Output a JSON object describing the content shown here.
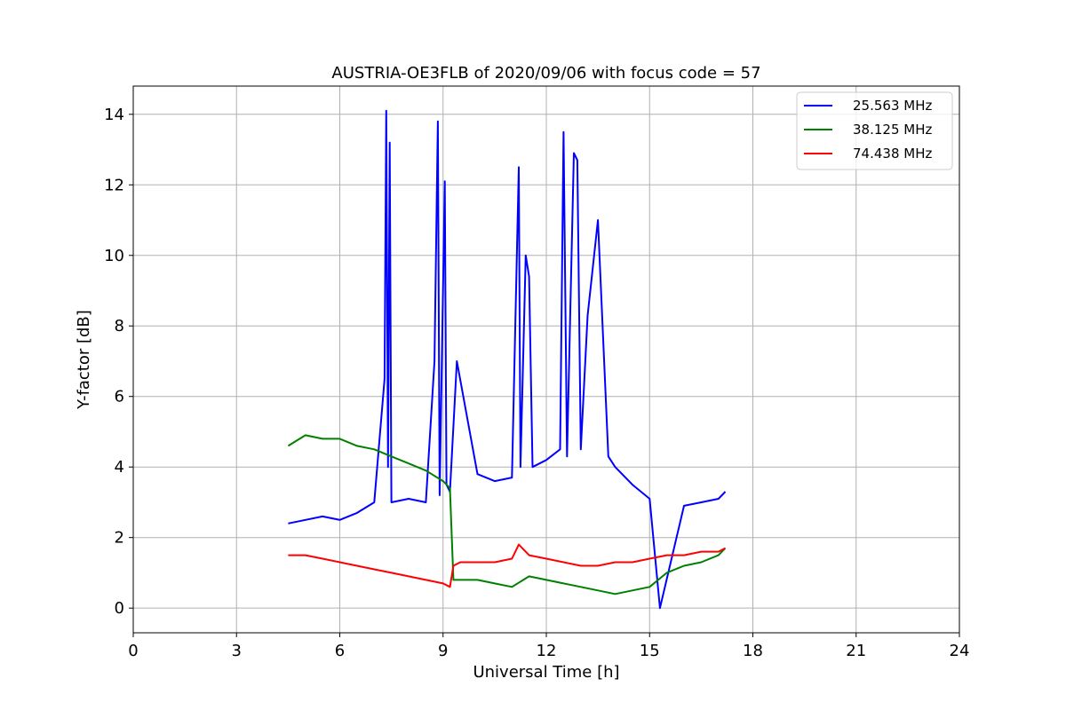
{
  "chart_data": {
    "type": "line",
    "title": "AUSTRIA-OE3FLB of 2020/09/06 with focus code = 57",
    "xlabel": "Universal Time [h]",
    "ylabel": "Y-factor [dB]",
    "xlim": [
      0,
      24
    ],
    "ylim": [
      -0.7,
      14.8
    ],
    "xticks": [
      0,
      3,
      6,
      9,
      12,
      15,
      18,
      21,
      24
    ],
    "xtick_labels": [
      "0",
      "3",
      "6",
      "9",
      "12",
      "15",
      "18",
      "21",
      "24"
    ],
    "yticks": [
      0,
      2,
      4,
      6,
      8,
      10,
      12,
      14
    ],
    "ytick_labels": [
      "0",
      "2",
      "4",
      "6",
      "8",
      "10",
      "12",
      "14"
    ],
    "grid": true,
    "legend_position": "top-right",
    "series": [
      {
        "name": "25.563 MHz",
        "color": "#0000ff",
        "x": [
          4.5,
          5.0,
          5.5,
          6.0,
          6.5,
          7.0,
          7.3,
          7.35,
          7.4,
          7.45,
          7.5,
          8.0,
          8.5,
          8.75,
          8.85,
          8.9,
          9.05,
          9.1,
          9.2,
          9.4,
          10.0,
          10.5,
          11.0,
          11.2,
          11.25,
          11.4,
          11.5,
          11.6,
          12.0,
          12.4,
          12.5,
          12.6,
          12.8,
          12.9,
          13.0,
          13.2,
          13.5,
          13.8,
          14.0,
          14.5,
          15.0,
          15.3,
          16.0,
          16.5,
          17.0,
          17.2
        ],
        "y": [
          2.4,
          2.5,
          2.6,
          2.5,
          2.7,
          3.0,
          6.5,
          14.1,
          4.0,
          13.2,
          3.0,
          3.1,
          3.0,
          7.0,
          13.8,
          3.2,
          12.1,
          3.5,
          3.3,
          7.0,
          3.8,
          3.6,
          3.7,
          12.5,
          4.0,
          10.0,
          9.4,
          4.0,
          4.2,
          4.5,
          13.5,
          4.3,
          12.9,
          12.7,
          4.5,
          8.3,
          11.0,
          4.3,
          4.0,
          3.5,
          3.1,
          0.0,
          2.9,
          3.0,
          3.1,
          3.3
        ]
      },
      {
        "name": "38.125 MHz",
        "color": "#008000",
        "x": [
          4.5,
          5.0,
          5.5,
          6.0,
          6.5,
          7.0,
          7.5,
          8.0,
          8.5,
          9.0,
          9.2,
          9.3,
          9.5,
          10.0,
          10.5,
          11.0,
          11.5,
          12.0,
          12.5,
          13.0,
          13.5,
          14.0,
          14.5,
          15.0,
          15.5,
          16.0,
          16.5,
          17.0,
          17.2
        ],
        "y": [
          4.6,
          4.9,
          4.8,
          4.8,
          4.6,
          4.5,
          4.3,
          4.1,
          3.9,
          3.6,
          3.4,
          0.8,
          0.8,
          0.8,
          0.7,
          0.6,
          0.9,
          0.8,
          0.7,
          0.6,
          0.5,
          0.4,
          0.5,
          0.6,
          1.0,
          1.2,
          1.3,
          1.5,
          1.7
        ]
      },
      {
        "name": "74.438 MHz",
        "color": "#ff0000",
        "x": [
          4.5,
          5.0,
          5.5,
          6.0,
          6.5,
          7.0,
          7.5,
          8.0,
          8.5,
          9.0,
          9.2,
          9.3,
          9.5,
          10.0,
          10.5,
          11.0,
          11.2,
          11.5,
          12.0,
          12.5,
          13.0,
          13.5,
          14.0,
          14.5,
          15.0,
          15.5,
          16.0,
          16.5,
          17.0,
          17.2
        ],
        "y": [
          1.5,
          1.5,
          1.4,
          1.3,
          1.2,
          1.1,
          1.0,
          0.9,
          0.8,
          0.7,
          0.6,
          1.2,
          1.3,
          1.3,
          1.3,
          1.4,
          1.8,
          1.5,
          1.4,
          1.3,
          1.2,
          1.2,
          1.3,
          1.3,
          1.4,
          1.5,
          1.5,
          1.6,
          1.6,
          1.7
        ]
      }
    ]
  }
}
